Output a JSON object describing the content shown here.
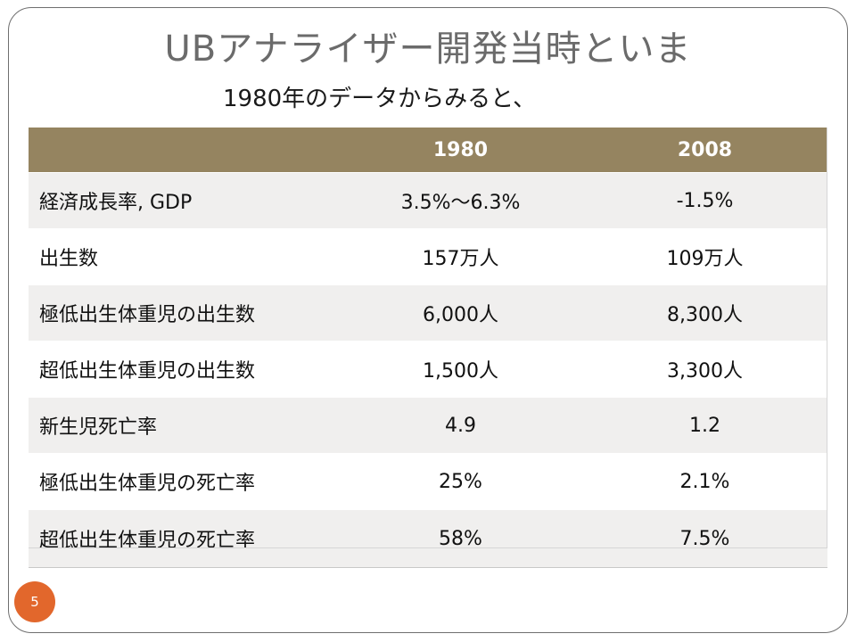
{
  "slide": {
    "title": "UBアナライザー開発当時といま",
    "subtitle": "1980年のデータからみると、",
    "page_number": "5"
  },
  "table": {
    "headers": [
      "",
      "1980",
      "2008"
    ],
    "rows": [
      [
        "経済成長率, GDP",
        "3.5%～6.3%",
        "-1.5%"
      ],
      [
        "出生数",
        "157万人",
        "109万人"
      ],
      [
        "極低出生体重児の出生数",
        "6,000人",
        "8,300人"
      ],
      [
        "超低出生体重児の出生数",
        "1,500人",
        "3,300人"
      ],
      [
        "新生児死亡率",
        "4.9",
        "1.2"
      ],
      [
        "極低出生体重児の死亡率",
        "25%",
        "2.1%"
      ],
      [
        "超低出生体重児の死亡率",
        "58%",
        "7.5%"
      ]
    ]
  },
  "colors": {
    "header_bg": "#958460",
    "stripe_bg": "#f0efee",
    "badge_bg": "#e2672c",
    "title_color": "#6b6b6b"
  }
}
